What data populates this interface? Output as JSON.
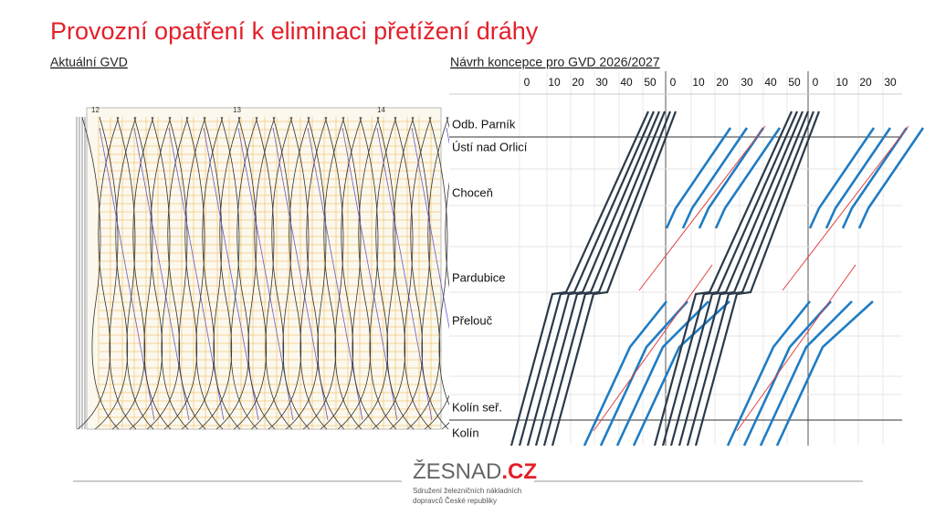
{
  "header": {
    "title": "Provozní opatření k eliminaci přetížení dráhy"
  },
  "left": {
    "subtitle": "Aktuální GVD",
    "hours": [
      "12",
      "13",
      "14"
    ]
  },
  "right": {
    "subtitle": "Návrh koncepce pro GVD 2026/2027",
    "minutes": [
      0,
      10,
      20,
      30,
      40,
      50,
      0,
      10,
      20,
      30,
      40,
      50,
      0,
      10,
      20,
      30
    ],
    "stations": [
      "Odb. Parník",
      "Ústí nad Orlicí",
      "Choceň",
      "Pardubice",
      "Přelouč",
      "Kolín seř.",
      "Kolín"
    ]
  },
  "footer": {
    "logo_main": "ŽESNAD",
    "logo_suffix": ".CZ",
    "tagline": [
      "Sdružení železničních nákladních",
      "dopravců České republiky"
    ]
  }
}
